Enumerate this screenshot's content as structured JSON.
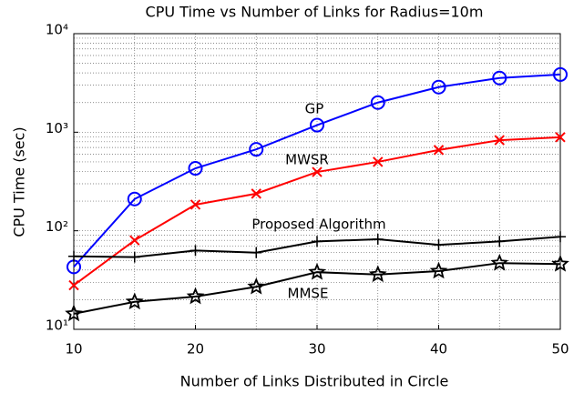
{
  "chart_data": {
    "type": "line",
    "title": "CPU Time vs Number of Links for Radius=10m",
    "xlabel": "Number of Links Distributed in Circle",
    "ylabel": "CPU Time (sec)",
    "x": [
      10,
      15,
      20,
      25,
      30,
      35,
      40,
      45,
      50
    ],
    "xlim": [
      10,
      50
    ],
    "xticks": [
      10,
      20,
      30,
      40,
      50
    ],
    "ylim": [
      10,
      10000
    ],
    "ylog": true,
    "yticks": [
      {
        "value": 10,
        "label": "10¹"
      },
      {
        "value": 100,
        "label": "10²"
      },
      {
        "value": 1000,
        "label": "10³"
      },
      {
        "value": 10000,
        "label": "10⁴"
      }
    ],
    "grid": true,
    "series": [
      {
        "name": "GP",
        "color": "#0000ff",
        "marker": "o",
        "values": [
          43,
          210,
          430,
          670,
          1180,
          2000,
          2870,
          3550,
          3850
        ]
      },
      {
        "name": "MWSR",
        "color": "#ff0000",
        "marker": "x",
        "values": [
          28,
          80,
          184,
          238,
          395,
          500,
          660,
          830,
          890
        ]
      },
      {
        "name": "Proposed Algorithm",
        "color": "#000000",
        "marker": "+",
        "values": [
          55,
          54,
          63,
          60,
          78,
          82,
          72,
          78,
          87
        ]
      },
      {
        "name": "MMSE",
        "color": "#000000",
        "marker": "star",
        "values": [
          14.4,
          19,
          21.5,
          27,
          38,
          36,
          39,
          47,
          46
        ]
      }
    ]
  }
}
